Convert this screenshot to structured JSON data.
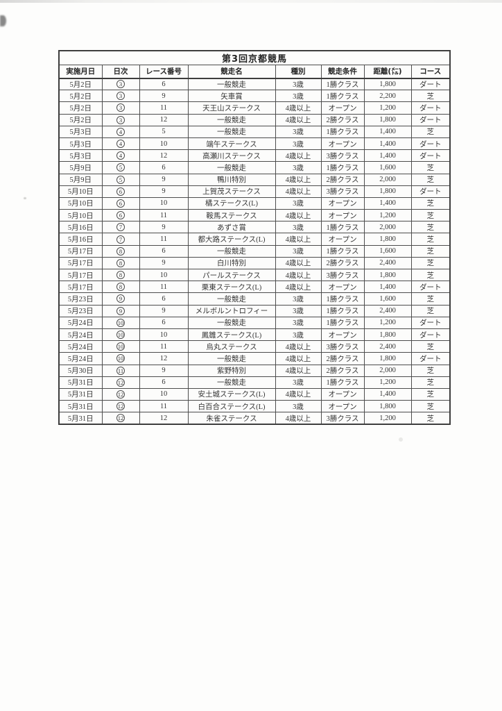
{
  "table": {
    "title": "第3回京都競馬",
    "columns": [
      {
        "label": "実施月日"
      },
      {
        "label": "日次"
      },
      {
        "label": "レース番号"
      },
      {
        "label": "競走名"
      },
      {
        "label": "種別"
      },
      {
        "label": "競走条件"
      },
      {
        "label": "距離(㍍)"
      },
      {
        "label": "コース"
      }
    ],
    "rows": [
      {
        "date": "5月2日",
        "day": "3",
        "race_no": "6",
        "name": "一般競走",
        "category": "3歳",
        "condition": "1勝クラス",
        "distance": "1,800",
        "course": "ダート"
      },
      {
        "date": "5月2日",
        "day": "3",
        "race_no": "9",
        "name": "矢車賞",
        "category": "3歳",
        "condition": "1勝クラス",
        "distance": "2,200",
        "course": "芝"
      },
      {
        "date": "5月2日",
        "day": "3",
        "race_no": "11",
        "name": "天王山ステークス",
        "category": "4歳以上",
        "condition": "オープン",
        "distance": "1,200",
        "course": "ダート"
      },
      {
        "date": "5月2日",
        "day": "3",
        "race_no": "12",
        "name": "一般競走",
        "category": "4歳以上",
        "condition": "2勝クラス",
        "distance": "1,800",
        "course": "ダート"
      },
      {
        "date": "5月3日",
        "day": "4",
        "race_no": "5",
        "name": "一般競走",
        "category": "3歳",
        "condition": "1勝クラス",
        "distance": "1,400",
        "course": "芝"
      },
      {
        "date": "5月3日",
        "day": "4",
        "race_no": "10",
        "name": "端午ステークス",
        "category": "3歳",
        "condition": "オープン",
        "distance": "1,400",
        "course": "ダート"
      },
      {
        "date": "5月3日",
        "day": "4",
        "race_no": "12",
        "name": "高瀬川ステークス",
        "category": "4歳以上",
        "condition": "3勝クラス",
        "distance": "1,400",
        "course": "ダート"
      },
      {
        "date": "5月9日",
        "day": "5",
        "race_no": "6",
        "name": "一般競走",
        "category": "3歳",
        "condition": "1勝クラス",
        "distance": "1,600",
        "course": "芝"
      },
      {
        "date": "5月9日",
        "day": "5",
        "race_no": "9",
        "name": "鴨川特別",
        "category": "4歳以上",
        "condition": "2勝クラス",
        "distance": "2,000",
        "course": "芝"
      },
      {
        "date": "5月10日",
        "day": "6",
        "race_no": "9",
        "name": "上賀茂ステークス",
        "category": "4歳以上",
        "condition": "3勝クラス",
        "distance": "1,800",
        "course": "ダート"
      },
      {
        "date": "5月10日",
        "day": "6",
        "race_no": "10",
        "name": "橘ステークス(L)",
        "category": "3歳",
        "condition": "オープン",
        "distance": "1,400",
        "course": "芝"
      },
      {
        "date": "5月10日",
        "day": "6",
        "race_no": "11",
        "name": "鞍馬ステークス",
        "category": "4歳以上",
        "condition": "オープン",
        "distance": "1,200",
        "course": "芝"
      },
      {
        "date": "5月16日",
        "day": "7",
        "race_no": "9",
        "name": "あずさ賞",
        "category": "3歳",
        "condition": "1勝クラス",
        "distance": "2,000",
        "course": "芝"
      },
      {
        "date": "5月16日",
        "day": "7",
        "race_no": "11",
        "name": "都大路ステークス(L)",
        "category": "4歳以上",
        "condition": "オープン",
        "distance": "1,800",
        "course": "芝"
      },
      {
        "date": "5月17日",
        "day": "8",
        "race_no": "6",
        "name": "一般競走",
        "category": "3歳",
        "condition": "1勝クラス",
        "distance": "1,600",
        "course": "芝"
      },
      {
        "date": "5月17日",
        "day": "8",
        "race_no": "9",
        "name": "白川特別",
        "category": "4歳以上",
        "condition": "2勝クラス",
        "distance": "2,400",
        "course": "芝"
      },
      {
        "date": "5月17日",
        "day": "8",
        "race_no": "10",
        "name": "パールステークス",
        "category": "4歳以上",
        "condition": "3勝クラス",
        "distance": "1,800",
        "course": "芝"
      },
      {
        "date": "5月17日",
        "day": "8",
        "race_no": "11",
        "name": "栗東ステークス(L)",
        "category": "4歳以上",
        "condition": "オープン",
        "distance": "1,400",
        "course": "ダート"
      },
      {
        "date": "5月23日",
        "day": "9",
        "race_no": "6",
        "name": "一般競走",
        "category": "3歳",
        "condition": "1勝クラス",
        "distance": "1,600",
        "course": "芝"
      },
      {
        "date": "5月23日",
        "day": "9",
        "race_no": "9",
        "name": "メルボルントロフィー",
        "category": "3歳",
        "condition": "1勝クラス",
        "distance": "2,400",
        "course": "芝"
      },
      {
        "date": "5月24日",
        "day": "10",
        "race_no": "6",
        "name": "一般競走",
        "category": "3歳",
        "condition": "1勝クラス",
        "distance": "1,200",
        "course": "ダート"
      },
      {
        "date": "5月24日",
        "day": "10",
        "race_no": "10",
        "name": "鳳雛ステークス(L)",
        "category": "3歳",
        "condition": "オープン",
        "distance": "1,800",
        "course": "ダート"
      },
      {
        "date": "5月24日",
        "day": "10",
        "race_no": "11",
        "name": "烏丸ステークス",
        "category": "4歳以上",
        "condition": "3勝クラス",
        "distance": "2,400",
        "course": "芝"
      },
      {
        "date": "5月24日",
        "day": "10",
        "race_no": "12",
        "name": "一般競走",
        "category": "4歳以上",
        "condition": "2勝クラス",
        "distance": "1,800",
        "course": "ダート"
      },
      {
        "date": "5月30日",
        "day": "11",
        "race_no": "9",
        "name": "紫野特別",
        "category": "4歳以上",
        "condition": "2勝クラス",
        "distance": "2,000",
        "course": "芝"
      },
      {
        "date": "5月31日",
        "day": "12",
        "race_no": "6",
        "name": "一般競走",
        "category": "3歳",
        "condition": "1勝クラス",
        "distance": "1,200",
        "course": "芝"
      },
      {
        "date": "5月31日",
        "day": "12",
        "race_no": "10",
        "name": "安土城ステークス(L)",
        "category": "4歳以上",
        "condition": "オープン",
        "distance": "1,400",
        "course": "芝"
      },
      {
        "date": "5月31日",
        "day": "12",
        "race_no": "11",
        "name": "白百合ステークス(L)",
        "category": "3歳",
        "condition": "オープン",
        "distance": "1,800",
        "course": "芝"
      },
      {
        "date": "5月31日",
        "day": "12",
        "race_no": "12",
        "name": "朱雀ステークス",
        "category": "4歳以上",
        "condition": "3勝クラス",
        "distance": "1,200",
        "course": "芝"
      }
    ]
  }
}
